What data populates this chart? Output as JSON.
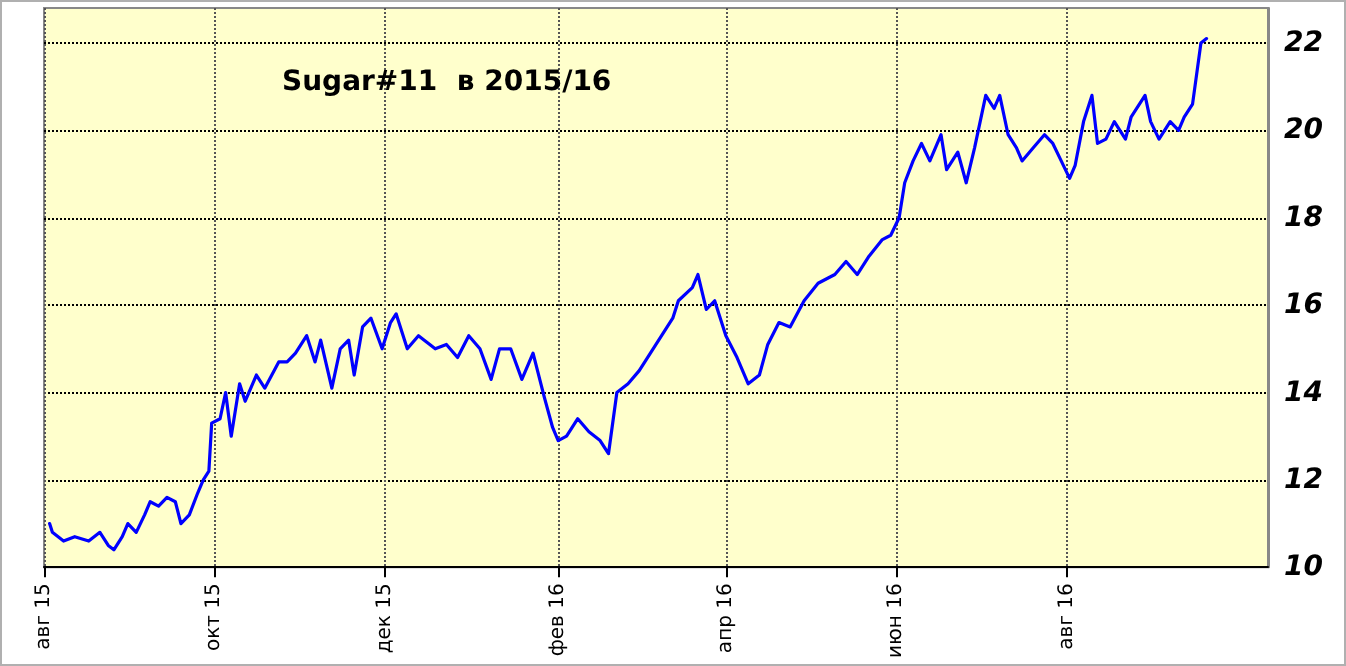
{
  "chart_data": {
    "type": "line",
    "title": "Sugar#11  в 2015/16",
    "x": [
      "2015-08-03",
      "2015-08-04",
      "2015-08-08",
      "2015-08-12",
      "2015-08-17",
      "2015-08-21",
      "2015-08-24",
      "2015-08-26",
      "2015-08-29",
      "2015-08-31",
      "2015-09-03",
      "2015-09-06",
      "2015-09-08",
      "2015-09-11",
      "2015-09-14",
      "2015-09-17",
      "2015-09-19",
      "2015-09-22",
      "2015-09-25",
      "2015-09-27",
      "2015-09-29",
      "2015-09-30",
      "2015-10-03",
      "2015-10-05",
      "2015-10-07",
      "2015-10-10",
      "2015-10-12",
      "2015-10-16",
      "2015-10-19",
      "2015-10-24",
      "2015-10-27",
      "2015-10-30",
      "2015-11-03",
      "2015-11-06",
      "2015-11-08",
      "2015-11-12",
      "2015-11-15",
      "2015-11-18",
      "2015-11-20",
      "2015-11-23",
      "2015-11-26",
      "2015-11-30",
      "2015-12-03",
      "2015-12-05",
      "2015-12-09",
      "2015-12-13",
      "2015-12-19",
      "2015-12-23",
      "2015-12-27",
      "2015-12-31",
      "2016-01-04",
      "2016-01-08",
      "2016-01-11",
      "2016-01-15",
      "2016-01-19",
      "2016-01-23",
      "2016-01-27",
      "2016-01-30",
      "2016-02-01",
      "2016-02-04",
      "2016-02-08",
      "2016-02-12",
      "2016-02-16",
      "2016-02-19",
      "2016-02-22",
      "2016-02-26",
      "2016-03-01",
      "2016-03-05",
      "2016-03-09",
      "2016-03-13",
      "2016-03-15",
      "2016-03-20",
      "2016-03-22",
      "2016-03-25",
      "2016-03-28",
      "2016-04-01",
      "2016-04-05",
      "2016-04-09",
      "2016-04-13",
      "2016-04-16",
      "2016-04-20",
      "2016-04-24",
      "2016-04-29",
      "2016-05-04",
      "2016-05-10",
      "2016-05-14",
      "2016-05-18",
      "2016-05-22",
      "2016-05-27",
      "2016-05-30",
      "2016-06-02",
      "2016-06-04",
      "2016-06-07",
      "2016-06-10",
      "2016-06-13",
      "2016-06-17",
      "2016-06-19",
      "2016-06-23",
      "2016-06-26",
      "2016-06-29",
      "2016-07-03",
      "2016-07-06",
      "2016-07-08",
      "2016-07-11",
      "2016-07-14",
      "2016-07-16",
      "2016-07-20",
      "2016-07-24",
      "2016-07-27",
      "2016-07-30",
      "2016-08-02",
      "2016-08-04",
      "2016-08-07",
      "2016-08-10",
      "2016-08-12",
      "2016-08-15",
      "2016-08-18",
      "2016-08-22",
      "2016-08-24",
      "2016-08-29",
      "2016-08-31",
      "2016-09-03",
      "2016-09-07",
      "2016-09-10",
      "2016-09-12",
      "2016-09-15",
      "2016-09-18",
      "2016-09-20"
    ],
    "series": [
      {
        "color": "#0000ff",
        "values": [
          11.0,
          10.8,
          10.6,
          10.7,
          10.6,
          10.8,
          10.5,
          10.4,
          10.7,
          11.0,
          10.8,
          11.2,
          11.5,
          11.4,
          11.6,
          11.5,
          11.0,
          11.2,
          11.7,
          12.0,
          12.2,
          13.3,
          13.4,
          14.0,
          13.0,
          14.2,
          13.8,
          14.4,
          14.1,
          14.7,
          14.7,
          14.9,
          15.3,
          14.7,
          15.2,
          14.1,
          15.0,
          15.2,
          14.4,
          15.5,
          15.7,
          15.0,
          15.6,
          15.8,
          15.0,
          15.3,
          15.0,
          15.1,
          14.8,
          15.3,
          15.0,
          14.3,
          15.0,
          15.0,
          14.3,
          14.9,
          13.9,
          13.2,
          12.9,
          13.0,
          13.4,
          13.1,
          12.9,
          12.6,
          14.0,
          14.2,
          14.5,
          14.9,
          15.3,
          15.7,
          16.1,
          16.4,
          16.7,
          15.9,
          16.1,
          15.3,
          14.8,
          14.2,
          14.4,
          15.1,
          15.6,
          15.5,
          16.1,
          16.5,
          16.7,
          17.0,
          16.7,
          17.1,
          17.5,
          17.6,
          18.0,
          18.8,
          19.3,
          19.7,
          19.3,
          19.9,
          19.1,
          19.5,
          18.8,
          19.6,
          20.8,
          20.5,
          20.8,
          19.9,
          19.6,
          19.3,
          19.6,
          19.9,
          19.7,
          19.3,
          18.9,
          19.2,
          20.2,
          20.8,
          19.7,
          19.8,
          20.2,
          19.8,
          20.3,
          20.8,
          20.2,
          19.8,
          20.2,
          20.0,
          20.3,
          20.6,
          22.0,
          22.1
        ]
      }
    ],
    "xlim": [
      "2015-08-01",
      "2016-10-12"
    ],
    "xticks": [
      {
        "value": "2015-08-01",
        "label": "авг 15"
      },
      {
        "value": "2015-10-01",
        "label": "окт 15"
      },
      {
        "value": "2015-12-01",
        "label": "дек 15"
      },
      {
        "value": "2016-02-01",
        "label": "фев 16"
      },
      {
        "value": "2016-04-01",
        "label": "апр 16"
      },
      {
        "value": "2016-06-01",
        "label": "июн 16"
      },
      {
        "value": "2016-08-01",
        "label": "авг 16"
      }
    ],
    "ylim": [
      10,
      22.8
    ],
    "yticks": [
      10,
      12,
      14,
      16,
      18,
      20,
      22
    ],
    "grid": true,
    "marker": "none",
    "line_style": "solid"
  }
}
